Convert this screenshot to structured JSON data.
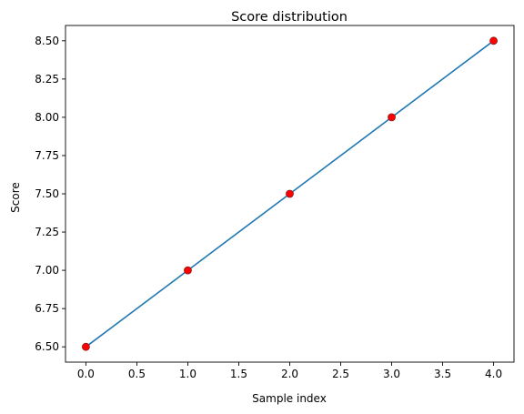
{
  "chart_data": {
    "type": "line",
    "title": "Score distribution",
    "xlabel": "Sample index",
    "ylabel": "Score",
    "xlim": [
      -0.2,
      4.2
    ],
    "ylim": [
      6.4,
      8.6
    ],
    "x_ticks": [
      0.0,
      0.5,
      1.0,
      1.5,
      2.0,
      2.5,
      3.0,
      3.5,
      4.0
    ],
    "x_tick_labels": [
      "0.0",
      "0.5",
      "1.0",
      "1.5",
      "2.0",
      "2.5",
      "3.0",
      "3.5",
      "4.0"
    ],
    "y_ticks": [
      6.5,
      6.75,
      7.0,
      7.25,
      7.5,
      7.75,
      8.0,
      8.25,
      8.5
    ],
    "y_tick_labels": [
      "6.50",
      "6.75",
      "7.00",
      "7.25",
      "7.50",
      "7.75",
      "8.00",
      "8.25",
      "8.50"
    ],
    "grid": false,
    "series": [
      {
        "x": [
          0,
          1,
          2,
          3,
          4
        ],
        "y": [
          6.5,
          7.0,
          7.5,
          8.0,
          8.5
        ],
        "line_color": "#1f77b4",
        "marker_color": "#ff0000",
        "marker_edge_color": "#8b1a1a"
      }
    ]
  }
}
